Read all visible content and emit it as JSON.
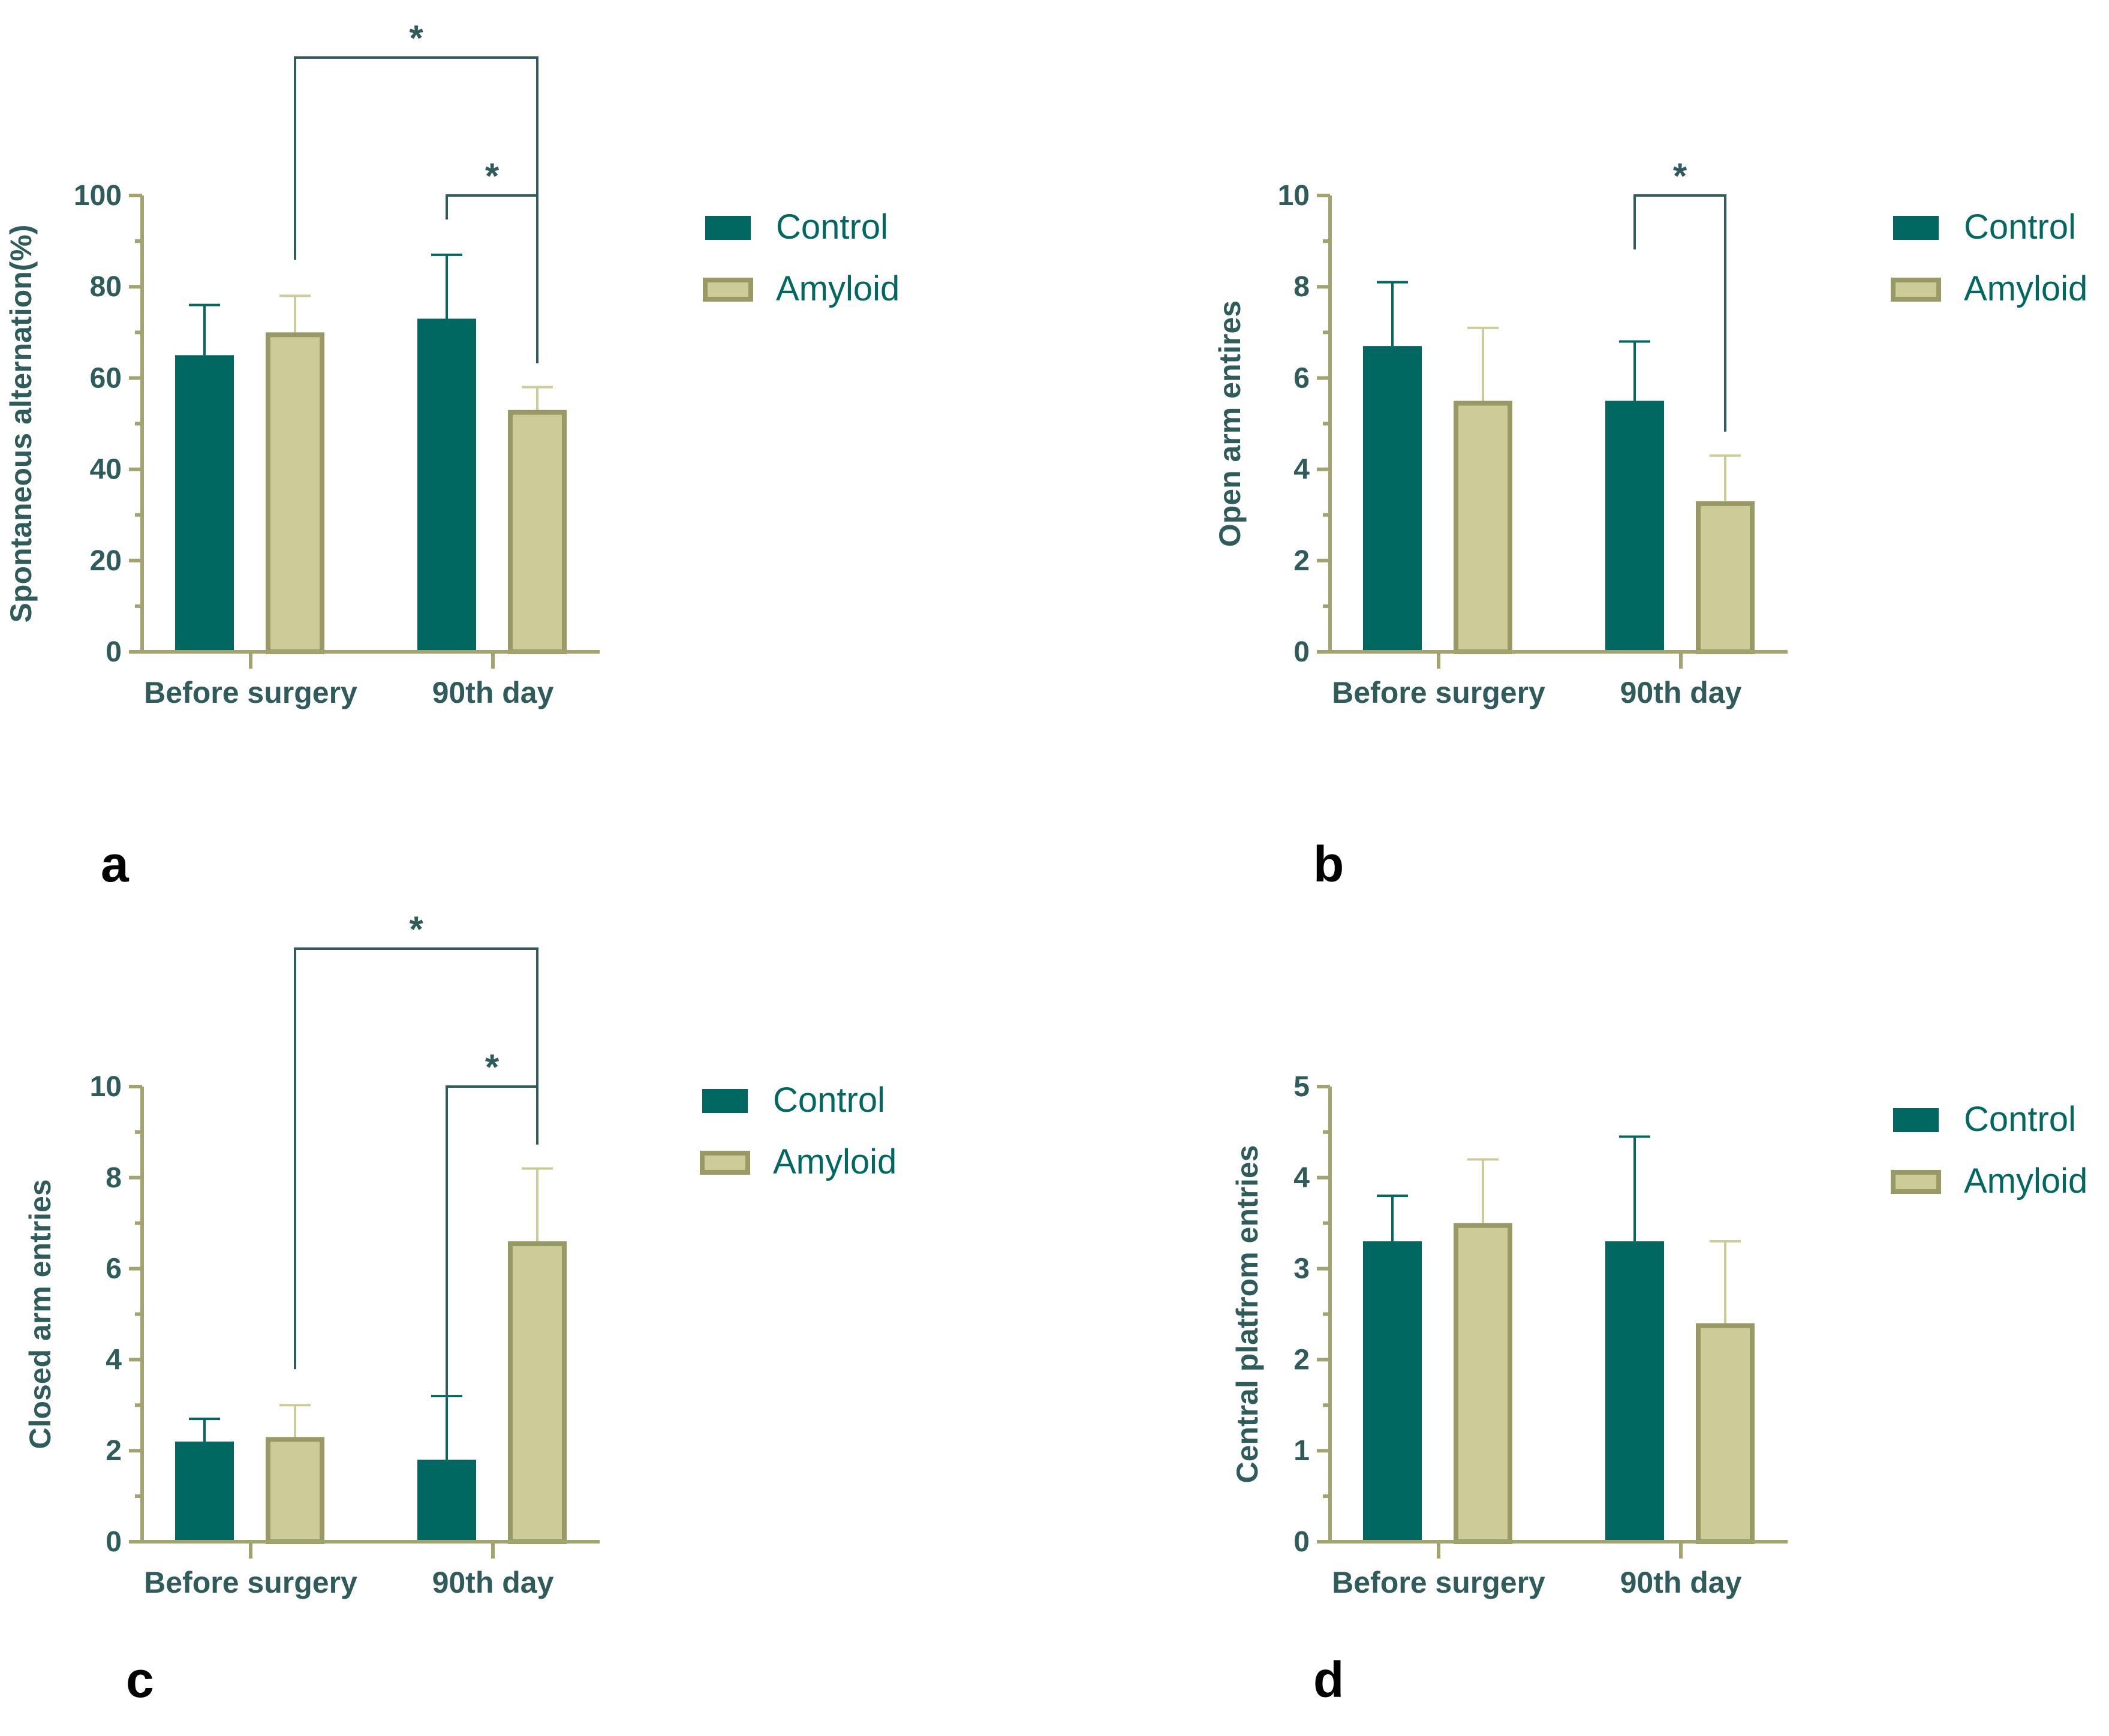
{
  "colors": {
    "control_fill": "#006860",
    "amyloid_fill": "#cccc99",
    "amyloid_stroke": "#999966",
    "axis": "#a3a370",
    "text": "#2f5c5a",
    "legend_text": "#006860",
    "panel_label": "#000000"
  },
  "chart_data": [
    {
      "panel": "a",
      "type": "bar",
      "title": "",
      "xlabel": "",
      "ylabel": "Spontaneous alternation(%)",
      "categories": [
        "Before surgery",
        "90th day"
      ],
      "ylim": [
        0,
        100
      ],
      "yticks": [
        "0",
        "20",
        "40",
        "60",
        "80",
        "100"
      ],
      "series": [
        {
          "name": "Control",
          "values": [
            65,
            73
          ],
          "errors": [
            11,
            14
          ]
        },
        {
          "name": "Amyloid",
          "values": [
            70,
            53
          ],
          "errors": [
            8,
            5
          ]
        }
      ],
      "legend": [
        "Control",
        "Amyloid"
      ],
      "significance": [
        {
          "from": [
            0,
            1
          ],
          "to": [
            1,
            1
          ],
          "label": "*",
          "level": "outer"
        },
        {
          "from": [
            1,
            0
          ],
          "to": [
            1,
            1
          ],
          "label": "*",
          "level": "inner"
        }
      ]
    },
    {
      "panel": "b",
      "type": "bar",
      "title": "",
      "xlabel": "",
      "ylabel": "Open arm entires",
      "categories": [
        "Before surgery",
        "90th day"
      ],
      "ylim": [
        0,
        10
      ],
      "yticks": [
        "0",
        "2",
        "4",
        "6",
        "8",
        "10"
      ],
      "series": [
        {
          "name": "Control",
          "values": [
            6.7,
            5.5
          ],
          "errors": [
            1.4,
            1.3
          ]
        },
        {
          "name": "Amyloid",
          "values": [
            5.5,
            3.3
          ],
          "errors": [
            1.6,
            1.0
          ]
        }
      ],
      "legend": [
        "Control",
        "Amyloid"
      ],
      "significance": [
        {
          "from": [
            1,
            0
          ],
          "to": [
            1,
            1
          ],
          "label": "*",
          "level": "inner"
        }
      ]
    },
    {
      "panel": "c",
      "type": "bar",
      "title": "",
      "xlabel": "",
      "ylabel": "Closed arm entries",
      "categories": [
        "Before surgery",
        "90th day"
      ],
      "ylim": [
        0,
        10
      ],
      "yticks": [
        "0",
        "2",
        "4",
        "6",
        "8",
        "10"
      ],
      "series": [
        {
          "name": "Control",
          "values": [
            2.2,
            1.8
          ],
          "errors": [
            0.5,
            1.4
          ]
        },
        {
          "name": "Amyloid",
          "values": [
            2.3,
            6.6
          ],
          "errors": [
            0.7,
            1.6
          ]
        }
      ],
      "legend": [
        "Control",
        "Amyloid"
      ],
      "significance": [
        {
          "from": [
            0,
            1
          ],
          "to": [
            1,
            1
          ],
          "label": "*",
          "level": "outer"
        },
        {
          "from": [
            1,
            0
          ],
          "to": [
            1,
            1
          ],
          "label": "*",
          "level": "inner"
        }
      ]
    },
    {
      "panel": "d",
      "type": "bar",
      "title": "",
      "xlabel": "",
      "ylabel": "Central platfrom entries",
      "categories": [
        "Before surgery",
        "90th day"
      ],
      "ylim": [
        0,
        5
      ],
      "yticks": [
        "0",
        "1",
        "2",
        "3",
        "4",
        "5"
      ],
      "series": [
        {
          "name": "Control",
          "values": [
            3.3,
            3.3
          ],
          "errors": [
            0.5,
            1.15
          ]
        },
        {
          "name": "Amyloid",
          "values": [
            3.5,
            2.4
          ],
          "errors": [
            0.7,
            0.9
          ]
        }
      ],
      "legend": [
        "Control",
        "Amyloid"
      ],
      "significance": []
    }
  ]
}
